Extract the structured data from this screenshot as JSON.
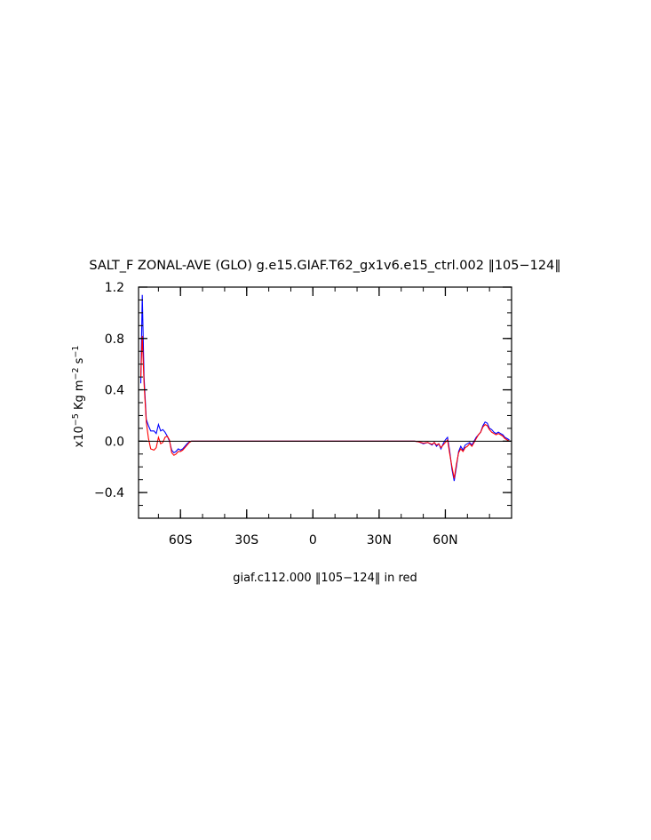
{
  "chart_data": {
    "type": "line",
    "title": "SALT_F ZONAL-AVE (GLO) g.e15.GIAF.T62_gx1v6.e15_ctrl.002 ‖105−124‖",
    "xlabel": "giaf.c112.000 ‖105−124‖ in red",
    "ylabel": {
      "prefix": "x10",
      "sup1": "−5",
      "mid1": " Kg m",
      "sup2": "−2",
      "mid2": " s",
      "sup3": "−1"
    },
    "xlim": [
      -79,
      90
    ],
    "ylim": [
      -0.6,
      1.2
    ],
    "xticks": [
      {
        "value": -60,
        "label": "60S"
      },
      {
        "value": -30,
        "label": "30S"
      },
      {
        "value": 0,
        "label": "0"
      },
      {
        "value": 30,
        "label": "30N"
      },
      {
        "value": 60,
        "label": "60N"
      }
    ],
    "yticks": [
      {
        "value": 1.2,
        "label": "1.2"
      },
      {
        "value": 0.8,
        "label": "0.8"
      },
      {
        "value": 0.4,
        "label": "0.4"
      },
      {
        "value": 0.0,
        "label": "0.0"
      },
      {
        "value": -0.4,
        "label": "−0.4"
      }
    ],
    "zero_line": true,
    "grid": false,
    "series": [
      {
        "color": "#0000ff",
        "points": [
          [
            -78,
            0.45
          ],
          [
            -77.3,
            1.14
          ],
          [
            -76.5,
            0.5
          ],
          [
            -75.5,
            0.17
          ],
          [
            -74.5,
            0.12
          ],
          [
            -73.5,
            0.08
          ],
          [
            -72,
            0.08
          ],
          [
            -71,
            0.06
          ],
          [
            -70,
            0.13
          ],
          [
            -69,
            0.08
          ],
          [
            -68,
            0.09
          ],
          [
            -67,
            0.07
          ],
          [
            -66,
            0.04
          ],
          [
            -65,
            0.0
          ],
          [
            -64,
            -0.07
          ],
          [
            -63,
            -0.09
          ],
          [
            -62,
            -0.08
          ],
          [
            -61,
            -0.06
          ],
          [
            -60,
            -0.07
          ],
          [
            -59,
            -0.06
          ],
          [
            -58,
            -0.04
          ],
          [
            -57,
            -0.02
          ],
          [
            -56,
            -0.005
          ],
          [
            -55,
            0.0
          ],
          [
            40,
            0.0
          ],
          [
            46,
            0.0
          ],
          [
            48,
            -0.005
          ],
          [
            50,
            -0.02
          ],
          [
            52,
            -0.01
          ],
          [
            54,
            -0.03
          ],
          [
            55,
            -0.01
          ],
          [
            56,
            -0.04
          ],
          [
            57,
            -0.02
          ],
          [
            58,
            -0.06
          ],
          [
            59,
            -0.02
          ],
          [
            60,
            0.01
          ],
          [
            61,
            0.03
          ],
          [
            62,
            -0.08
          ],
          [
            63,
            -0.22
          ],
          [
            64,
            -0.31
          ],
          [
            65,
            -0.2
          ],
          [
            66,
            -0.08
          ],
          [
            67,
            -0.04
          ],
          [
            68,
            -0.07
          ],
          [
            69,
            -0.03
          ],
          [
            70,
            -0.02
          ],
          [
            71,
            -0.01
          ],
          [
            72,
            -0.03
          ],
          [
            73,
            0.0
          ],
          [
            74,
            0.03
          ],
          [
            75,
            0.05
          ],
          [
            76,
            0.07
          ],
          [
            77,
            0.12
          ],
          [
            78,
            0.15
          ],
          [
            79,
            0.14
          ],
          [
            80,
            0.1
          ],
          [
            81,
            0.09
          ],
          [
            82,
            0.07
          ],
          [
            83,
            0.06
          ],
          [
            84,
            0.07
          ],
          [
            85,
            0.06
          ],
          [
            86,
            0.05
          ],
          [
            87,
            0.03
          ],
          [
            88,
            0.02
          ],
          [
            89,
            0.01
          ]
        ]
      },
      {
        "color": "#ff0000",
        "points": [
          [
            -78,
            0.5
          ],
          [
            -77.3,
            0.82
          ],
          [
            -76.5,
            0.45
          ],
          [
            -75.5,
            0.15
          ],
          [
            -74.5,
            0.02
          ],
          [
            -73.5,
            -0.06
          ],
          [
            -72,
            -0.07
          ],
          [
            -71,
            -0.05
          ],
          [
            -70,
            0.03
          ],
          [
            -69,
            -0.02
          ],
          [
            -68,
            -0.01
          ],
          [
            -67,
            0.03
          ],
          [
            -66,
            0.04
          ],
          [
            -65,
            0.01
          ],
          [
            -64,
            -0.09
          ],
          [
            -63,
            -0.11
          ],
          [
            -62,
            -0.1
          ],
          [
            -61,
            -0.08
          ],
          [
            -60,
            -0.08
          ],
          [
            -59,
            -0.07
          ],
          [
            -58,
            -0.05
          ],
          [
            -57,
            -0.03
          ],
          [
            -56,
            -0.01
          ],
          [
            -55,
            0.0
          ],
          [
            40,
            0.0
          ],
          [
            46,
            0.0
          ],
          [
            48,
            -0.005
          ],
          [
            50,
            -0.015
          ],
          [
            52,
            -0.01
          ],
          [
            54,
            -0.025
          ],
          [
            55,
            -0.01
          ],
          [
            56,
            -0.03
          ],
          [
            57,
            -0.02
          ],
          [
            58,
            -0.05
          ],
          [
            59,
            -0.03
          ],
          [
            60,
            -0.01
          ],
          [
            61,
            0.01
          ],
          [
            62,
            -0.1
          ],
          [
            63,
            -0.2
          ],
          [
            64,
            -0.29
          ],
          [
            65,
            -0.18
          ],
          [
            66,
            -0.09
          ],
          [
            67,
            -0.06
          ],
          [
            68,
            -0.08
          ],
          [
            69,
            -0.05
          ],
          [
            70,
            -0.04
          ],
          [
            71,
            -0.02
          ],
          [
            72,
            -0.04
          ],
          [
            73,
            -0.01
          ],
          [
            74,
            0.02
          ],
          [
            75,
            0.05
          ],
          [
            76,
            0.07
          ],
          [
            77,
            0.11
          ],
          [
            78,
            0.13
          ],
          [
            79,
            0.12
          ],
          [
            80,
            0.09
          ],
          [
            81,
            0.07
          ],
          [
            82,
            0.06
          ],
          [
            83,
            0.05
          ],
          [
            84,
            0.06
          ],
          [
            85,
            0.05
          ],
          [
            86,
            0.04
          ],
          [
            87,
            0.02
          ],
          [
            88,
            0.01
          ],
          [
            89,
            0.0
          ]
        ]
      }
    ]
  }
}
